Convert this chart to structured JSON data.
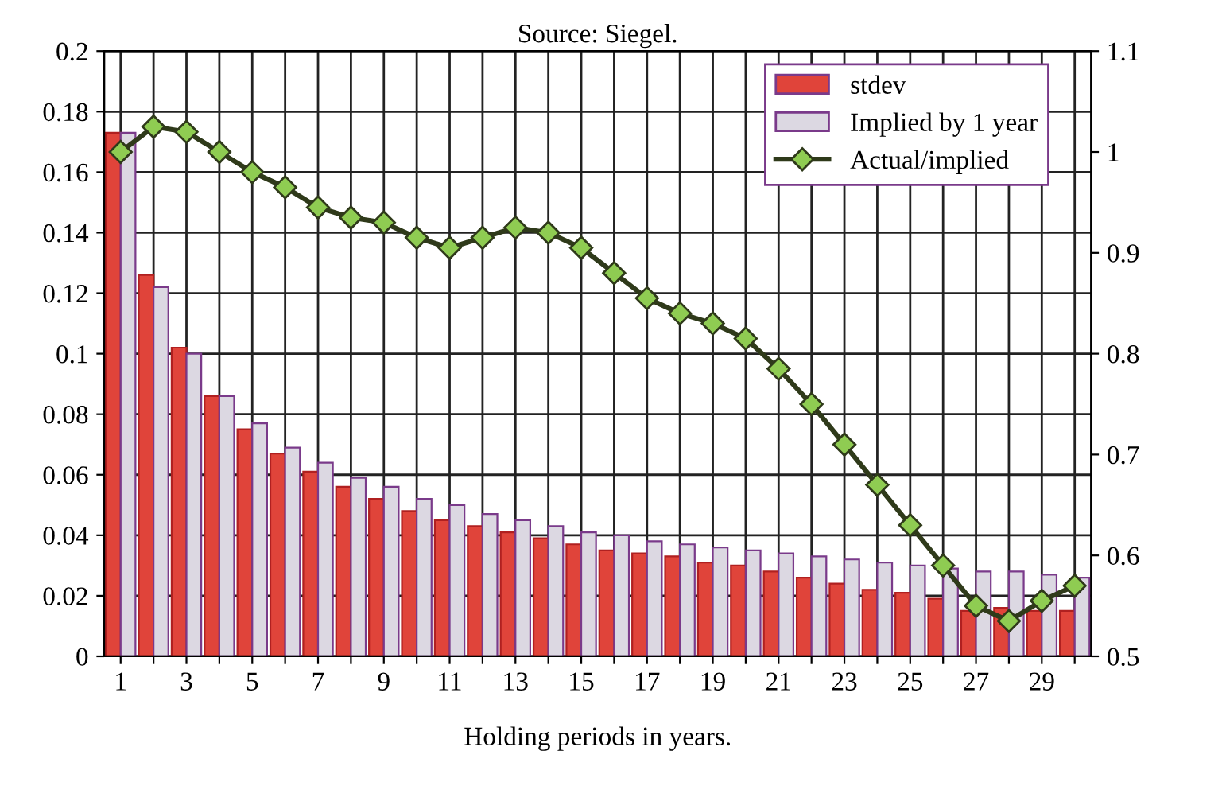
{
  "chart_data": {
    "type": "bar",
    "title": "Source: Siegel.",
    "xlabel": "Holding periods in years.",
    "categories": [
      "1",
      null,
      "3",
      null,
      "5",
      null,
      "7",
      null,
      "9",
      null,
      "11",
      null,
      "13",
      null,
      "15",
      null,
      "17",
      null,
      "19",
      null,
      "21",
      null,
      "23",
      null,
      "25",
      null,
      "27",
      null,
      "29",
      null
    ],
    "series": [
      {
        "name": "stdev",
        "color": "#e0443a",
        "values": [
          0.173,
          0.126,
          0.102,
          0.086,
          0.075,
          0.067,
          0.061,
          0.056,
          0.052,
          0.048,
          0.045,
          0.043,
          0.041,
          0.039,
          0.037,
          0.035,
          0.034,
          0.033,
          0.031,
          0.03,
          0.028,
          0.026,
          0.024,
          0.022,
          0.021,
          0.019,
          0.015,
          0.016,
          0.015,
          0.015
        ]
      },
      {
        "name": "Implied by 1 year",
        "color": "#dcd8e2",
        "values": [
          0.173,
          0.122,
          0.1,
          0.086,
          0.077,
          0.069,
          0.064,
          0.059,
          0.056,
          0.052,
          0.05,
          0.047,
          0.045,
          0.043,
          0.041,
          0.04,
          0.038,
          0.037,
          0.036,
          0.035,
          0.034,
          0.033,
          0.032,
          0.031,
          0.03,
          0.029,
          0.028,
          0.028,
          0.027,
          0.026
        ]
      },
      {
        "name": "Actual/implied",
        "type": "line",
        "axis": "y2",
        "color": "#2f3a1a",
        "marker": "diamond",
        "line_style": "solid",
        "values": [
          1.0,
          1.025,
          1.02,
          1.0,
          0.98,
          0.965,
          0.945,
          0.935,
          0.93,
          0.915,
          0.905,
          0.915,
          0.925,
          0.92,
          0.905,
          0.88,
          0.855,
          0.84,
          0.83,
          0.815,
          0.785,
          0.75,
          0.71,
          0.67,
          0.63,
          0.59,
          0.55,
          0.535,
          0.555,
          0.57
        ]
      }
    ],
    "ylim": [
      0,
      0.2
    ],
    "yticks": [
      0,
      0.02,
      0.04,
      0.06,
      0.08,
      0.1,
      0.12,
      0.14,
      0.16,
      0.18,
      0.2
    ],
    "y2lim": [
      0.5,
      1.1
    ],
    "y2ticks": [
      0.5,
      0.6,
      0.7,
      0.8,
      0.9,
      1,
      1.1
    ],
    "grid": true,
    "legend": "top right"
  }
}
